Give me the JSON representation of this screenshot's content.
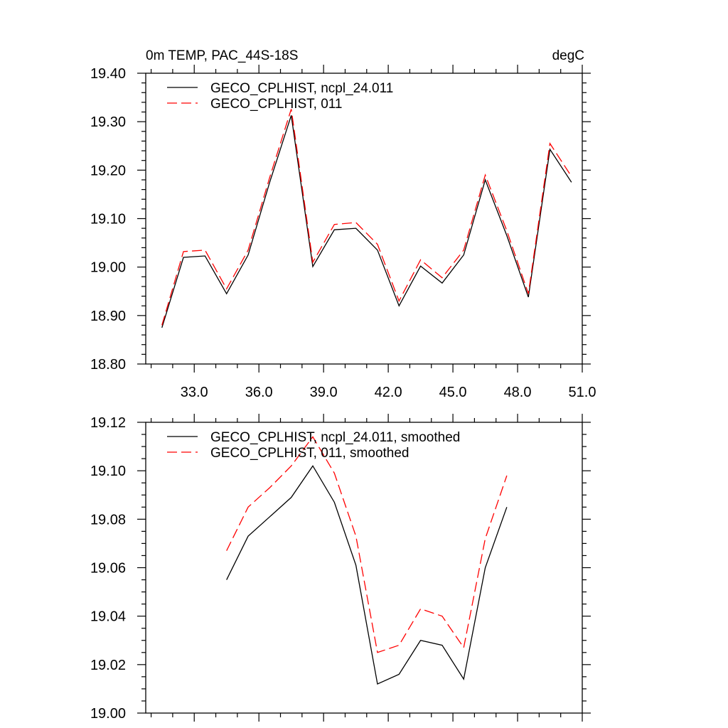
{
  "chart_data": [
    {
      "type": "line",
      "title_left": "0m TEMP, PAC_44S-18S",
      "title_right": "degC",
      "x": [
        31.5,
        32.5,
        33.5,
        34.5,
        35.5,
        36.5,
        37.5,
        38.5,
        39.5,
        40.5,
        41.5,
        42.5,
        43.5,
        44.5,
        45.5,
        46.5,
        47.5,
        48.5,
        49.5,
        50.5
      ],
      "xlim": [
        30.75,
        51.0
      ],
      "xticks": [
        33.0,
        36.0,
        39.0,
        42.0,
        45.0,
        48.0,
        51.0
      ],
      "xtick_labels": [
        "33.0",
        "36.0",
        "39.0",
        "42.0",
        "45.0",
        "48.0",
        "51.0"
      ],
      "ylim": [
        18.8,
        19.4
      ],
      "yticks": [
        18.8,
        18.9,
        19.0,
        19.1,
        19.2,
        19.3,
        19.4
      ],
      "ytick_labels": [
        "18.80",
        "18.90",
        "19.00",
        "19.10",
        "19.20",
        "19.30",
        "19.40"
      ],
      "legend": "top-left",
      "series": [
        {
          "name": "GECO_CPLHIST, ncpl_24.011",
          "color": "#000000",
          "dash": "solid",
          "values": [
            18.875,
            19.02,
            19.023,
            18.945,
            19.025,
            19.175,
            19.313,
            19.001,
            19.077,
            19.08,
            19.035,
            18.92,
            19.002,
            18.967,
            19.025,
            19.18,
            19.065,
            18.938,
            19.243,
            19.175
          ]
        },
        {
          "name": "GECO_CPLHIST, 011",
          "color": "#ff0000",
          "dash": "dashed",
          "values": [
            18.88,
            19.032,
            19.035,
            18.955,
            19.035,
            19.185,
            19.326,
            19.01,
            19.088,
            19.092,
            19.047,
            18.93,
            19.015,
            18.978,
            19.035,
            19.19,
            19.075,
            18.945,
            19.255,
            19.187
          ]
        }
      ]
    },
    {
      "type": "line",
      "x": [
        34.5,
        35.5,
        36.5,
        37.5,
        38.5,
        39.5,
        40.5,
        41.5,
        42.5,
        43.5,
        44.5,
        45.5,
        46.5,
        47.5
      ],
      "xlim": [
        30.75,
        51.0
      ],
      "xticks": [
        33.0,
        36.0,
        39.0,
        42.0,
        45.0,
        48.0,
        51.0
      ],
      "ylim": [
        19.0,
        19.12
      ],
      "yticks": [
        19.0,
        19.02,
        19.04,
        19.06,
        19.08,
        19.1,
        19.12
      ],
      "ytick_labels": [
        "19.00",
        "19.02",
        "19.04",
        "19.06",
        "19.08",
        "19.10",
        "19.12"
      ],
      "legend": "top-left",
      "series": [
        {
          "name": "GECO_CPLHIST, ncpl_24.011, smoothed",
          "color": "#000000",
          "dash": "solid",
          "values": [
            19.055,
            19.073,
            19.081,
            19.089,
            19.102,
            19.087,
            19.061,
            19.012,
            19.016,
            19.03,
            19.028,
            19.014,
            19.06,
            19.085
          ]
        },
        {
          "name": "GECO_CPLHIST, 011, smoothed",
          "color": "#ff0000",
          "dash": "dashed",
          "values": [
            19.067,
            19.085,
            19.093,
            19.102,
            19.114,
            19.099,
            19.073,
            19.025,
            19.028,
            19.043,
            19.04,
            19.027,
            19.072,
            19.098
          ]
        }
      ]
    }
  ]
}
